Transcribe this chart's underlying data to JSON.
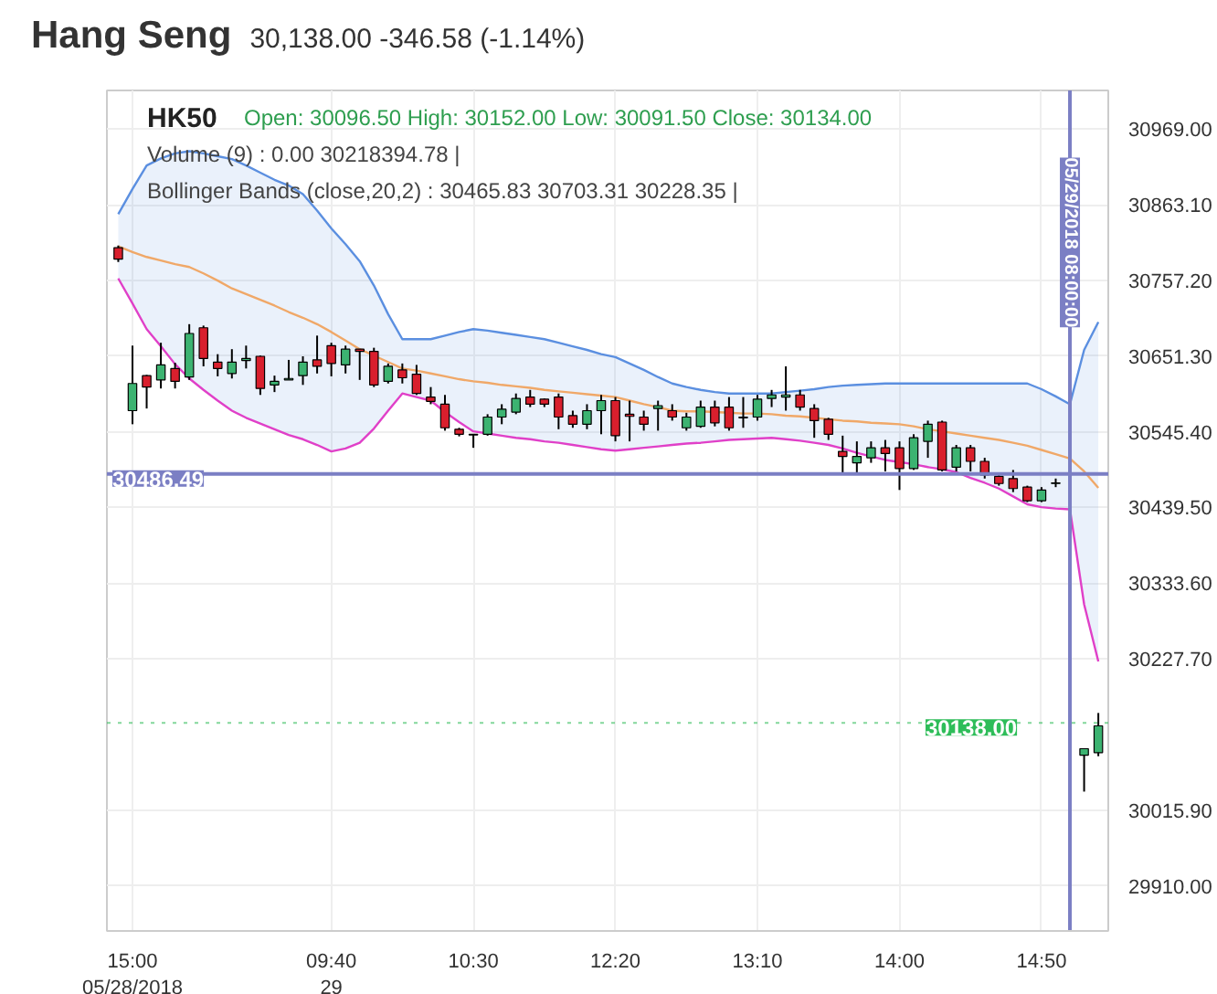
{
  "chart_data": {
    "type": "candlestick",
    "title": "Hang Seng",
    "subtitle": "30,138.00 -346.58 (-1.14%)",
    "annotations": [
      "HK50",
      "Open: 30096.50 High: 30152.00 Low: 30091.50 Close: 30134.00",
      "Volume (9) : 0.00 30218394.78 |",
      "Bollinger Bands (close,20,2) : 30465.83 30703.31 30228.35 |"
    ],
    "categories": [
      null,
      "15:00\n05/28/2018",
      null,
      null,
      null,
      null,
      null,
      null,
      null,
      null,
      null,
      null,
      null,
      null,
      null,
      "09:40\n29",
      null,
      null,
      null,
      null,
      null,
      null,
      null,
      null,
      null,
      "10:30",
      null,
      null,
      null,
      null,
      null,
      null,
      null,
      null,
      null,
      "12:20",
      null,
      null,
      null,
      null,
      null,
      null,
      null,
      null,
      null,
      "13:10",
      null,
      null,
      null,
      null,
      null,
      null,
      null,
      null,
      null,
      "14:00",
      null,
      null,
      null,
      null,
      null,
      null,
      null,
      null,
      null,
      "14:50",
      null,
      "05/29/2018 08:00:00",
      null,
      null
    ],
    "ohlc": [
      [
        30803,
        30806,
        30783,
        30787
      ],
      [
        30575,
        30666,
        30556,
        30613
      ],
      [
        30624,
        30625,
        30578,
        30608
      ],
      [
        30618,
        30670,
        30606,
        30639
      ],
      [
        30634,
        30642,
        30606,
        30616
      ],
      [
        30622,
        30696,
        30618,
        30683
      ],
      [
        30691,
        30694,
        30637,
        30648
      ],
      [
        30643,
        30654,
        30623,
        30634
      ],
      [
        30627,
        30661,
        30620,
        30643
      ],
      [
        30645,
        30666,
        30634,
        30648
      ],
      [
        30651,
        30652,
        30597,
        30606
      ],
      [
        30611,
        30624,
        30601,
        30616
      ],
      [
        30618,
        30646,
        30618,
        30620
      ],
      [
        30624,
        30651,
        30611,
        30643
      ],
      [
        30646,
        30680,
        30627,
        30637
      ],
      [
        30666,
        30670,
        30623,
        30641
      ],
      [
        30639,
        30666,
        30627,
        30661
      ],
      [
        30661,
        30661,
        30618,
        30658
      ],
      [
        30658,
        30663,
        30608,
        30611
      ],
      [
        30616,
        30641,
        30613,
        30637
      ],
      [
        30632,
        30641,
        30613,
        30621
      ],
      [
        30626,
        30639,
        30597,
        30599
      ],
      [
        30594,
        30608,
        30584,
        30588
      ],
      [
        30584,
        30597,
        30547,
        30551
      ],
      [
        30549,
        30551,
        30539,
        30542
      ],
      [
        30541,
        30542,
        30523,
        30542
      ],
      [
        30542,
        30570,
        30540,
        30566
      ],
      [
        30566,
        30584,
        30556,
        30577
      ],
      [
        30573,
        30599,
        30570,
        30592
      ],
      [
        30594,
        30604,
        30580,
        30584
      ],
      [
        30591,
        30592,
        30580,
        30584
      ],
      [
        30594,
        30599,
        30549,
        30566
      ],
      [
        30568,
        30575,
        30551,
        30556
      ],
      [
        30556,
        30584,
        30549,
        30575
      ],
      [
        30575,
        30597,
        30542,
        30589
      ],
      [
        30589,
        30594,
        30532,
        30540
      ],
      [
        30570,
        30589,
        30532,
        30567
      ],
      [
        30566,
        30575,
        30547,
        30556
      ],
      [
        30578,
        30589,
        30547,
        30582
      ],
      [
        30575,
        30584,
        30561,
        30566
      ],
      [
        30551,
        30572,
        30547,
        30566
      ],
      [
        30553,
        30589,
        30551,
        30580
      ],
      [
        30580,
        30589,
        30553,
        30558
      ],
      [
        30580,
        30594,
        30547,
        30551
      ],
      [
        30565,
        30594,
        30551,
        30566
      ],
      [
        30566,
        30597,
        30561,
        30591
      ],
      [
        30592,
        30604,
        30580,
        30597
      ],
      [
        30594,
        30637,
        30575,
        30597
      ],
      [
        30597,
        30604,
        30575,
        30580
      ],
      [
        30578,
        30584,
        30537,
        30561
      ],
      [
        30563,
        30565,
        30534,
        30542
      ],
      [
        30518,
        30540,
        30485,
        30511
      ],
      [
        30502,
        30532,
        30487,
        30511
      ],
      [
        30509,
        30532,
        30502,
        30523
      ],
      [
        30523,
        30534,
        30490,
        30515
      ],
      [
        30523,
        30532,
        30464,
        30494
      ],
      [
        30494,
        30542,
        30492,
        30537
      ],
      [
        30532,
        30561,
        30509,
        30556
      ],
      [
        30559,
        30561,
        30490,
        30492
      ],
      [
        30496,
        30527,
        30490,
        30523
      ],
      [
        30523,
        30527,
        30490,
        30504
      ],
      [
        30504,
        30509,
        30480,
        30485
      ],
      [
        30483,
        30485,
        30470,
        30473
      ],
      [
        30480,
        30492,
        30461,
        30466
      ],
      [
        30468,
        30470,
        30447,
        30449
      ],
      [
        30449,
        30468,
        30447,
        30464
      ],
      [
        30473,
        30480,
        30468,
        30474
      ],
      null,
      [
        30093,
        30102,
        30042,
        30102
      ],
      [
        30096.5,
        30152,
        30091.5,
        30134
      ]
    ],
    "colors": [
      "#d91f2d",
      "#3cb371",
      "#d91f2d",
      "#3cb371",
      "#d91f2d",
      "#3cb371",
      "#d91f2d",
      "#d91f2d",
      "#3cb371",
      "#3cb371",
      "#d91f2d",
      "#3cb371",
      "#3cb371",
      "#3cb371",
      "#d91f2d",
      "#d91f2d",
      "#3cb371",
      "#d91f2d",
      "#d91f2d",
      "#3cb371",
      "#d91f2d",
      "#d91f2d",
      "#d91f2d",
      "#d91f2d",
      "#d91f2d",
      "#3cb371",
      "#3cb371",
      "#3cb371",
      "#3cb371",
      "#d91f2d",
      "#d91f2d",
      "#d91f2d",
      "#d91f2d",
      "#3cb371",
      "#3cb371",
      "#d91f2d",
      "#d91f2d",
      "#d91f2d",
      "#3cb371",
      "#d91f2d",
      "#3cb371",
      "#3cb371",
      "#d91f2d",
      "#d91f2d",
      "#3cb371",
      "#3cb371",
      "#3cb371",
      "#3cb371",
      "#d91f2d",
      "#d91f2d",
      "#d91f2d",
      "#d91f2d",
      "#3cb371",
      "#3cb371",
      "#d91f2d",
      "#d91f2d",
      "#3cb371",
      "#3cb371",
      "#d91f2d",
      "#3cb371",
      "#d91f2d",
      "#d91f2d",
      "#d91f2d",
      "#d91f2d",
      "#d91f2d",
      "#3cb371",
      "#3cb371",
      null,
      "#3cb371",
      "#3cb371"
    ],
    "series": [
      {
        "type": "line",
        "color": "#5b8fe0",
        "values": [
          30850,
          30885,
          30918,
          30928,
          30935,
          30938,
          30935,
          30931,
          30927,
          30918,
          30908,
          30898,
          30890,
          30878,
          30855,
          30830,
          30808,
          30784,
          30750,
          30710,
          30675,
          30675,
          30675,
          30680,
          30685,
          30689,
          30687,
          30684,
          30681,
          30678,
          30675,
          30670,
          30665,
          30660,
          30654,
          30650,
          30641,
          30632,
          30622,
          30613,
          30608,
          30604,
          30601,
          30599,
          30599,
          30599,
          30599,
          30601,
          30603,
          30605,
          30608,
          30610,
          30611,
          30612,
          30613,
          30613,
          30613,
          30613,
          30613,
          30613,
          30613,
          30613,
          30613,
          30613,
          30613,
          30605,
          30595,
          30584,
          30660,
          30699
        ],
        "upper": [
          30850,
          30885,
          30918,
          30928,
          30935,
          30938,
          30935,
          30931,
          30927,
          30918,
          30908,
          30898,
          30890,
          30878,
          30855,
          30830,
          30808,
          30784,
          30750,
          30710,
          30675,
          30675,
          30675,
          30680,
          30685,
          30689,
          30687,
          30684,
          30681,
          30678,
          30675,
          30670,
          30665,
          30660,
          30654,
          30650,
          30641,
          30632,
          30622,
          30613,
          30608,
          30604,
          30601,
          30599,
          30599,
          30599,
          30599,
          30601,
          30603,
          30605,
          30608,
          30610,
          30611,
          30612,
          30613,
          30613,
          30613,
          30613,
          30613,
          30613,
          30613,
          30613,
          30613,
          30613,
          30613,
          30605,
          30595,
          30584,
          30660,
          30699
        ],
        "lower": [
          30760,
          30725,
          30689,
          30665,
          30640,
          30620,
          30604,
          30589,
          30575,
          30565,
          30557,
          30549,
          30541,
          30535,
          30527,
          30518,
          30522,
          30530,
          30550,
          30575,
          30599,
          30594,
          30589,
          30573,
          30559,
          30546,
          30543,
          30540,
          30537,
          30535,
          30532,
          30530,
          30527,
          30524,
          30521,
          30519,
          30521,
          30523,
          30525,
          30527,
          30529,
          30530,
          30532,
          30534,
          30535,
          30536,
          30537,
          30535,
          30533,
          30530,
          30527,
          30522,
          30516,
          30511,
          30506,
          30503,
          30500,
          30496,
          30493,
          30489,
          30481,
          30474,
          30466,
          30455,
          30444,
          30440,
          30438,
          30437,
          30304,
          30224
        ]
      },
      {
        "type": "line",
        "color": "#f0a868",
        "values": [
          30805,
          30797,
          30790,
          30785,
          30780,
          30776,
          30767,
          30757,
          30746,
          30738,
          30730,
          30722,
          30713,
          30705,
          30696,
          30685,
          30673,
          30661,
          30652,
          30643,
          30634,
          30631,
          30627,
          30623,
          30619,
          30616,
          30614,
          30611,
          30609,
          30607,
          30604,
          30602,
          30600,
          30598,
          30596,
          30594,
          30589,
          30584,
          30580,
          30575,
          30574,
          30574,
          30573,
          30572,
          30571,
          30571,
          30570,
          30568,
          30567,
          30565,
          30563,
          30561,
          30560,
          30558,
          30557,
          30556,
          30553,
          30549,
          30546,
          30543,
          30540,
          30537,
          30534,
          30530,
          30526,
          30520,
          30514,
          30508,
          30490,
          30467
        ]
      },
      {
        "type": "line",
        "color": "#e040c8",
        "values": [
          30760,
          30725,
          30689,
          30665,
          30640,
          30620,
          30604,
          30589,
          30575,
          30565,
          30557,
          30549,
          30541,
          30535,
          30527,
          30518,
          30522,
          30530,
          30550,
          30575,
          30599,
          30594,
          30589,
          30573,
          30559,
          30546,
          30543,
          30540,
          30537,
          30535,
          30532,
          30530,
          30527,
          30524,
          30521,
          30519,
          30521,
          30523,
          30525,
          30527,
          30529,
          30530,
          30532,
          30534,
          30535,
          30536,
          30537,
          30535,
          30533,
          30530,
          30527,
          30522,
          30516,
          30511,
          30506,
          30503,
          30500,
          30496,
          30493,
          30489,
          30481,
          30474,
          30466,
          30455,
          30444,
          30440,
          30438,
          30437,
          30304,
          30224
        ]
      }
    ],
    "ylim": [
      29847,
      31023
    ],
    "yticks": [
      {
        "value": 30969,
        "label": "30969.00"
      },
      {
        "value": 30863.1,
        "label": "30863.10"
      },
      {
        "value": 30757.2,
        "label": "30757.20"
      },
      {
        "value": 30651.3,
        "label": "30651.30"
      },
      {
        "value": 30545.4,
        "label": "30545.40"
      },
      {
        "value": 30439.5,
        "label": "30439.50"
      },
      {
        "value": 30333.6,
        "label": "30333.60"
      },
      {
        "value": 30227.7,
        "label": "30227.70"
      },
      {
        "value": 30015.9,
        "label": "30015.90"
      },
      {
        "value": 29910,
        "label": "29910.00"
      }
    ],
    "ref_lines": [
      {
        "axis": "y",
        "value": 30486.49,
        "label": "30486.49",
        "color": "#7b7fc4",
        "line_style": "solid"
      },
      {
        "axis": "x",
        "value": "05/29/2018 08:00:00",
        "color": "#7b7fc4",
        "line_style": "solid"
      },
      {
        "axis": "y",
        "value": 30138,
        "label": "30138.00",
        "color": "#2ebd59",
        "line_style": "dotted"
      }
    ],
    "grid": true
  }
}
